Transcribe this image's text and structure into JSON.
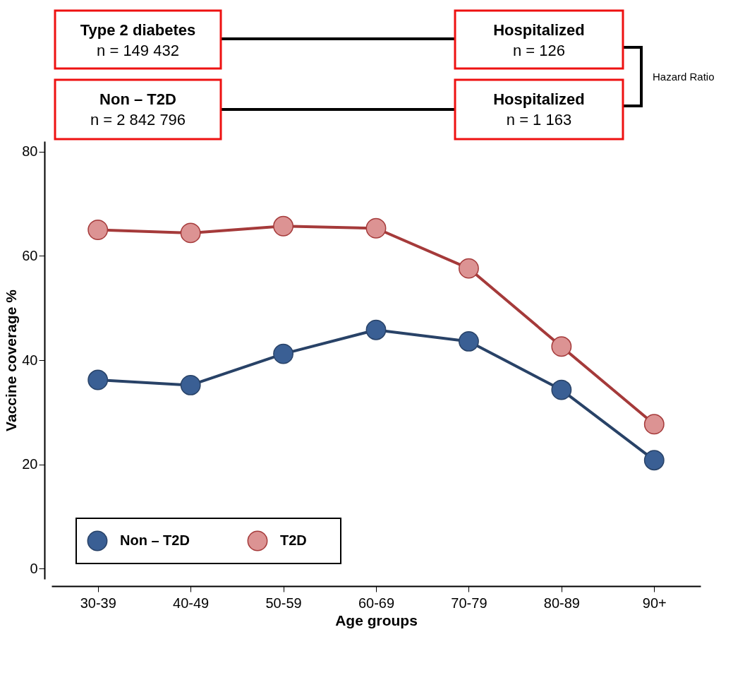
{
  "chart_data": {
    "type": "line",
    "xlabel": "Age groups",
    "ylabel": "Vaccine coverage %",
    "categories": [
      "30-39",
      "40-49",
      "50-59",
      "60-69",
      "70-79",
      "80-89",
      "90+"
    ],
    "series": [
      {
        "name": "Non – T2D",
        "color": "#3a5f94",
        "values": [
          36.2,
          35.2,
          41.2,
          45.8,
          43.6,
          34.3,
          20.8
        ]
      },
      {
        "name": "T2D",
        "color": "#dc9393",
        "values": [
          65.0,
          64.4,
          65.7,
          65.3,
          57.6,
          42.6,
          27.7
        ]
      }
    ],
    "ylim": [
      -2,
      82
    ],
    "yticks": [
      0,
      20,
      40,
      60,
      80
    ],
    "grid": false,
    "legend": "bottom left",
    "marker": "circle",
    "line_style": "solid",
    "annotations": [
      "Type 2 diabetes",
      "n = 149 432",
      "Non – T2D",
      "n = 2 842 796",
      "Hospitalized",
      "n = 126",
      "Hospitalized",
      "n = 1 163",
      "Hazard Ratio"
    ]
  }
}
